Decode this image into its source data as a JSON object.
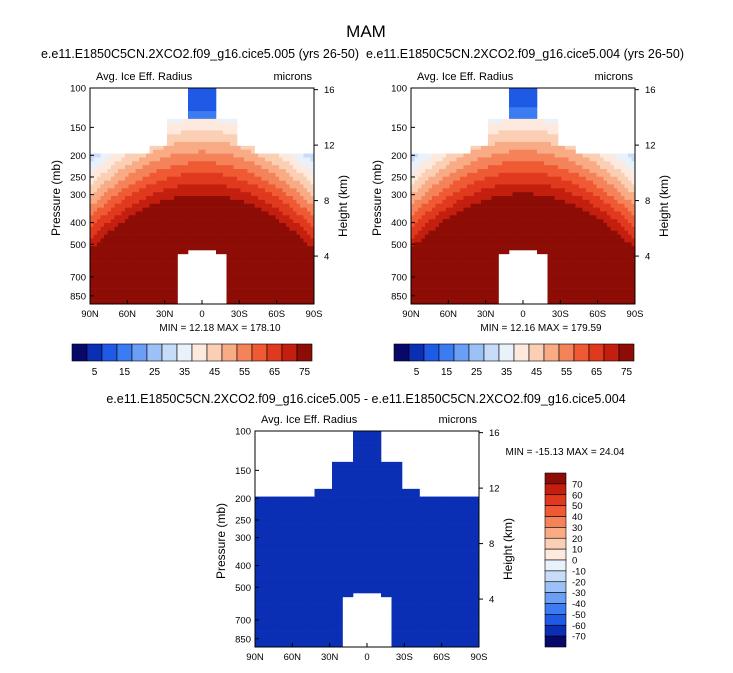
{
  "page": {
    "title": "MAM"
  },
  "colors": {
    "bg": "#ffffff",
    "frame": "#000000",
    "missing": "#ffffff"
  },
  "chart_data": [
    {
      "type": "heatmap",
      "title": "e.e11.E1850C5CN.2XCO2.f09_g16.cice5.005 (yrs 26-50)",
      "left_label": "Avg. Ice Eff. Radius",
      "right_label": "microns",
      "xlabel": "",
      "ylabel": "Pressure (mb)",
      "ylabel_right": "Height (km)",
      "x_ticks": [
        "90N",
        "60N",
        "30N",
        "0",
        "30S",
        "60S",
        "90S"
      ],
      "x_tick_values": [
        90,
        60,
        30,
        0,
        -30,
        -60,
        -90
      ],
      "y_ticks": [
        "100",
        "150",
        "200",
        "250",
        "300",
        "400",
        "500",
        "700",
        "850"
      ],
      "y_tick_values": [
        100,
        150,
        200,
        250,
        300,
        400,
        500,
        700,
        850
      ],
      "y_ticks_right": [
        "4",
        "8",
        "12",
        "16"
      ],
      "y_tick_right_values": [
        4,
        8,
        12,
        16
      ],
      "ylim": [
        100,
        925
      ],
      "y_scale": "log-pressure",
      "stats": "MIN =  12.18   MAX = 178.10",
      "colorbar": {
        "orientation": "horizontal",
        "labels": [
          "5",
          "15",
          "25",
          "35",
          "45",
          "55",
          "65",
          "75"
        ],
        "levels": [
          0,
          5,
          10,
          15,
          20,
          25,
          30,
          35,
          40,
          45,
          50,
          55,
          60,
          65,
          70,
          75
        ],
        "colors": [
          "#08086b",
          "#0a2fb5",
          "#1f5ae6",
          "#3b7cf2",
          "#6a9ff5",
          "#9cc1f7",
          "#c6dcf8",
          "#e9f1fb",
          "#fde9dd",
          "#fbcfb3",
          "#f8ab85",
          "#f5835a",
          "#ef5a34",
          "#e0391d",
          "#c41f0e",
          "#8d0d06"
        ]
      }
    },
    {
      "type": "heatmap",
      "title": "e.e11.E1850C5CN.2XCO2.f09_g16.cice5.004 (yrs 26-50)",
      "left_label": "Avg. Ice Eff. Radius",
      "right_label": "microns",
      "xlabel": "",
      "ylabel": "Pressure (mb)",
      "ylabel_right": "Height (km)",
      "x_ticks": [
        "90N",
        "60N",
        "30N",
        "0",
        "30S",
        "60S",
        "90S"
      ],
      "x_tick_values": [
        90,
        60,
        30,
        0,
        -30,
        -60,
        -90
      ],
      "y_ticks": [
        "100",
        "150",
        "200",
        "250",
        "300",
        "400",
        "500",
        "700",
        "850"
      ],
      "y_tick_values": [
        100,
        150,
        200,
        250,
        300,
        400,
        500,
        700,
        850
      ],
      "y_ticks_right": [
        "4",
        "8",
        "12",
        "16"
      ],
      "y_tick_right_values": [
        4,
        8,
        12,
        16
      ],
      "ylim": [
        100,
        925
      ],
      "y_scale": "log-pressure",
      "stats": "MIN =  12.16   MAX = 179.59",
      "colorbar": {
        "orientation": "horizontal",
        "labels": [
          "5",
          "15",
          "25",
          "35",
          "45",
          "55",
          "65",
          "75"
        ],
        "levels": [
          0,
          5,
          10,
          15,
          20,
          25,
          30,
          35,
          40,
          45,
          50,
          55,
          60,
          65,
          70,
          75
        ],
        "colors": [
          "#08086b",
          "#0a2fb5",
          "#1f5ae6",
          "#3b7cf2",
          "#6a9ff5",
          "#9cc1f7",
          "#c6dcf8",
          "#e9f1fb",
          "#fde9dd",
          "#fbcfb3",
          "#f8ab85",
          "#f5835a",
          "#ef5a34",
          "#e0391d",
          "#c41f0e",
          "#8d0d06"
        ]
      }
    },
    {
      "type": "heatmap",
      "title": "e.e11.E1850C5CN.2XCO2.f09_g16.cice5.005 - e.e11.E1850C5CN.2XCO2.f09_g16.cice5.004",
      "left_label": "Avg. Ice Eff. Radius",
      "right_label": "microns",
      "xlabel": "",
      "ylabel": "Pressure (mb)",
      "ylabel_right": "Height (km)",
      "x_ticks": [
        "90N",
        "60N",
        "30N",
        "0",
        "30S",
        "60S",
        "90S"
      ],
      "x_tick_values": [
        90,
        60,
        30,
        0,
        -30,
        -60,
        -90
      ],
      "y_ticks": [
        "100",
        "150",
        "200",
        "250",
        "300",
        "400",
        "500",
        "700",
        "850"
      ],
      "y_tick_values": [
        100,
        150,
        200,
        250,
        300,
        400,
        500,
        700,
        850
      ],
      "y_ticks_right": [
        "4",
        "8",
        "12",
        "16"
      ],
      "y_tick_right_values": [
        4,
        8,
        12,
        16
      ],
      "ylim": [
        100,
        925
      ],
      "y_scale": "log-pressure",
      "stats": "MIN = -15.13   MAX =  24.04",
      "colorbar": {
        "orientation": "vertical",
        "labels": [
          "70",
          "60",
          "50",
          "40",
          "30",
          "20",
          "10",
          "0",
          "-10",
          "-20",
          "-30",
          "-40",
          "-50",
          "-60",
          "-70"
        ],
        "levels": [
          70,
          60,
          50,
          40,
          30,
          20,
          10,
          0,
          -10,
          -20,
          -30,
          -40,
          -50,
          -60,
          -70
        ],
        "colors": [
          "#8d0d06",
          "#c41f0e",
          "#e0391d",
          "#ef5a34",
          "#f5835a",
          "#f8ab85",
          "#fbcfb3",
          "#fde9dd",
          "#e9f1fb",
          "#c6dcf8",
          "#9cc1f7",
          "#6a9ff5",
          "#3b7cf2",
          "#1f5ae6",
          "#0a2fb5",
          "#08086b"
        ]
      }
    }
  ]
}
